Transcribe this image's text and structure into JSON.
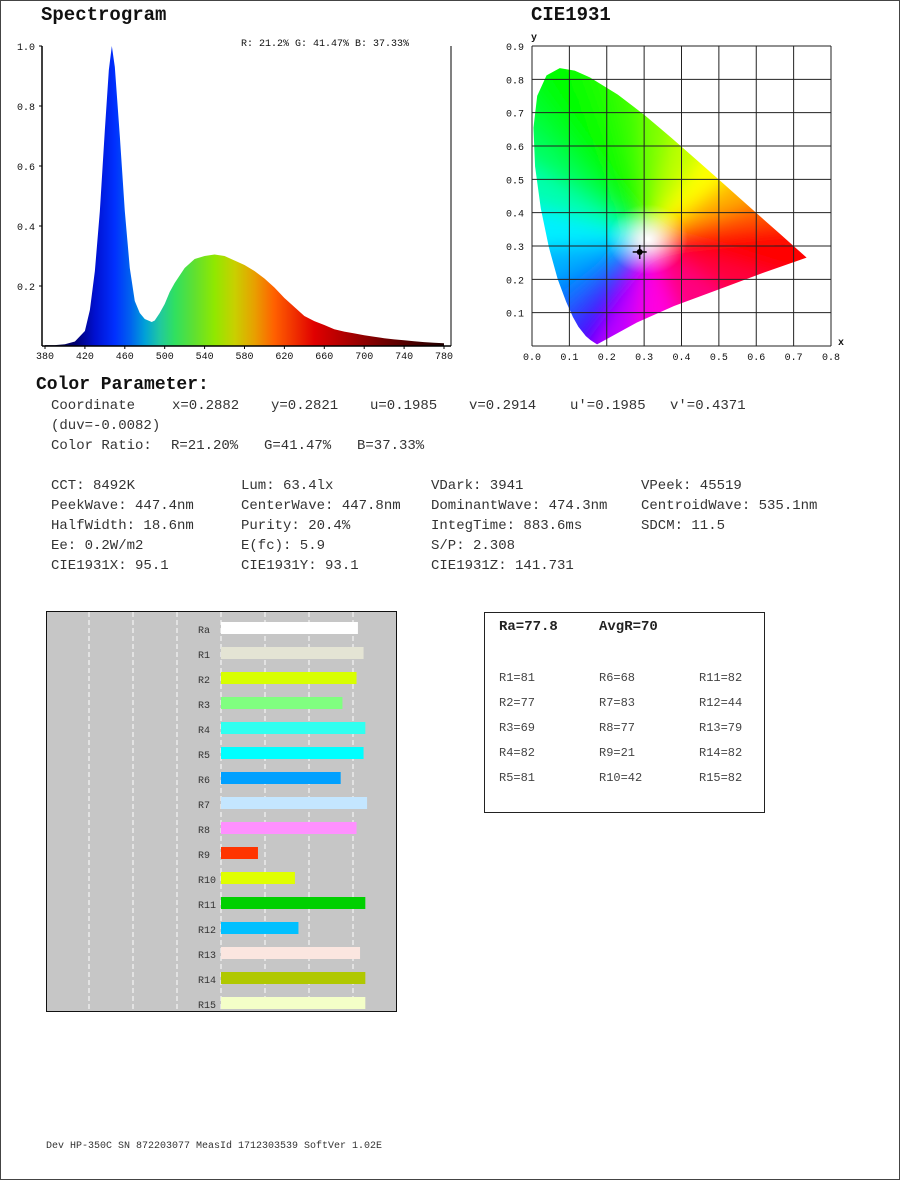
{
  "spectrogram": {
    "title": "Spectrogram",
    "rgb_label": "R: 21.2%  G: 41.47%  B: 37.33%"
  },
  "cie": {
    "title": "CIE1931"
  },
  "chart_data": [
    {
      "type": "area",
      "title": "Spectrogram",
      "xlim": [
        380,
        780
      ],
      "ylim": [
        0,
        1.0
      ],
      "x_ticks": [
        "380",
        "420",
        "460",
        "500",
        "540",
        "580",
        "620",
        "660",
        "700",
        "740",
        "780"
      ],
      "y_ticks": [
        "0.2",
        "0.4",
        "0.6",
        "0.8",
        "1.0"
      ],
      "fill": "spectral-gradient",
      "x": [
        380,
        390,
        400,
        410,
        420,
        425,
        430,
        435,
        440,
        444,
        447,
        450,
        455,
        460,
        465,
        470,
        475,
        480,
        487,
        490,
        495,
        500,
        505,
        510,
        520,
        530,
        540,
        550,
        560,
        570,
        580,
        590,
        600,
        610,
        620,
        630,
        640,
        650,
        660,
        670,
        680,
        690,
        700,
        710,
        720,
        730,
        740,
        750,
        760,
        770,
        780
      ],
      "y": [
        0.003,
        0.003,
        0.006,
        0.015,
        0.05,
        0.12,
        0.25,
        0.45,
        0.72,
        0.92,
        1.0,
        0.93,
        0.7,
        0.45,
        0.26,
        0.15,
        0.11,
        0.09,
        0.08,
        0.085,
        0.11,
        0.14,
        0.18,
        0.21,
        0.26,
        0.29,
        0.3,
        0.305,
        0.3,
        0.285,
        0.27,
        0.25,
        0.225,
        0.195,
        0.16,
        0.13,
        0.1,
        0.083,
        0.07,
        0.056,
        0.048,
        0.042,
        0.036,
        0.031,
        0.026,
        0.022,
        0.019,
        0.016,
        0.013,
        0.011,
        0.009
      ]
    },
    {
      "type": "scatter",
      "title": "CIE1931",
      "xlabel": "x",
      "ylabel": "y",
      "xlim": [
        0,
        0.8
      ],
      "ylim": [
        0,
        0.9
      ],
      "x_ticks": [
        "0.0",
        "0.1",
        "0.2",
        "0.3",
        "0.4",
        "0.5",
        "0.6",
        "0.7",
        "0.8"
      ],
      "y_ticks": [
        "0.1",
        "0.2",
        "0.3",
        "0.4",
        "0.5",
        "0.6",
        "0.7",
        "0.8",
        "0.9"
      ],
      "grid": true,
      "point": {
        "x": 0.2882,
        "y": 0.2821
      }
    },
    {
      "type": "bar",
      "orientation": "horizontal",
      "xlim": [
        -100,
        100
      ],
      "categories": [
        "Ra",
        "R1",
        "R2",
        "R3",
        "R4",
        "R5",
        "R6",
        "R7",
        "R8",
        "R9",
        "R10",
        "R11",
        "R12",
        "R13",
        "R14",
        "R15"
      ],
      "values": [
        77.8,
        81,
        77,
        69,
        82,
        81,
        68,
        83,
        77,
        21,
        42,
        82,
        44,
        79,
        82,
        82
      ],
      "colors": [
        "#ffffff",
        "#e4e4d4",
        "#d8ff00",
        "#80ff80",
        "#30fff0",
        "#00ffff",
        "#00a0ff",
        "#c4e6ff",
        "#ff90ff",
        "#ff3400",
        "#e0ff00",
        "#00d000",
        "#00c0ff",
        "#fbe6e0",
        "#b0c800",
        "#f4ffc8"
      ],
      "background": "#c6c6c6"
    }
  ],
  "params": {
    "title": "Color Parameter:",
    "coord_label": "Coordinate",
    "x": "x=0.2882",
    "y": "y=0.2821",
    "u": "u=0.1985",
    "v": "v=0.2914",
    "u2": "u'=0.1985",
    "v2": "v'=0.4371",
    "duv": "(duv=-0.0082)",
    "ratio_label": "Color Ratio:",
    "ratio_r": "R=21.20%",
    "ratio_g": "G=41.47%",
    "ratio_b": "B=37.33%",
    "grid": [
      [
        "CCT: 8492K",
        "Lum: 63.4lx",
        "VDark: 3941",
        "VPeek: 45519"
      ],
      [
        "PeekWave: 447.4nm",
        "CenterWave: 447.8nm",
        "DominantWave: 474.3nm",
        "CentroidWave: 535.1nm"
      ],
      [
        "HalfWidth: 18.6nm",
        "Purity: 20.4%",
        "IntegTime: 883.6ms",
        "SDCM: 11.5"
      ],
      [
        "Ee: 0.2W/m2",
        "E(fc): 5.9",
        "S/P: 2.308",
        ""
      ],
      [
        "CIE1931X: 95.1",
        "CIE1931Y: 93.1",
        "CIE1931Z: 141.731",
        ""
      ]
    ]
  },
  "cri": {
    "ra": "Ra=77.8",
    "avgr": "AvgR=70",
    "cols": [
      [
        "R1=81",
        "R2=77",
        "R3=69",
        "R4=82",
        "R5=81"
      ],
      [
        "R6=68",
        "R7=83",
        "R8=77",
        "R9=21",
        "R10=42"
      ],
      [
        "R11=82",
        "R12=44",
        "R13=79",
        "R14=82",
        "R15=82"
      ]
    ]
  },
  "footer": "Dev HP-350C SN 872203077 MeasId 1712303539 SoftVer 1.02E"
}
